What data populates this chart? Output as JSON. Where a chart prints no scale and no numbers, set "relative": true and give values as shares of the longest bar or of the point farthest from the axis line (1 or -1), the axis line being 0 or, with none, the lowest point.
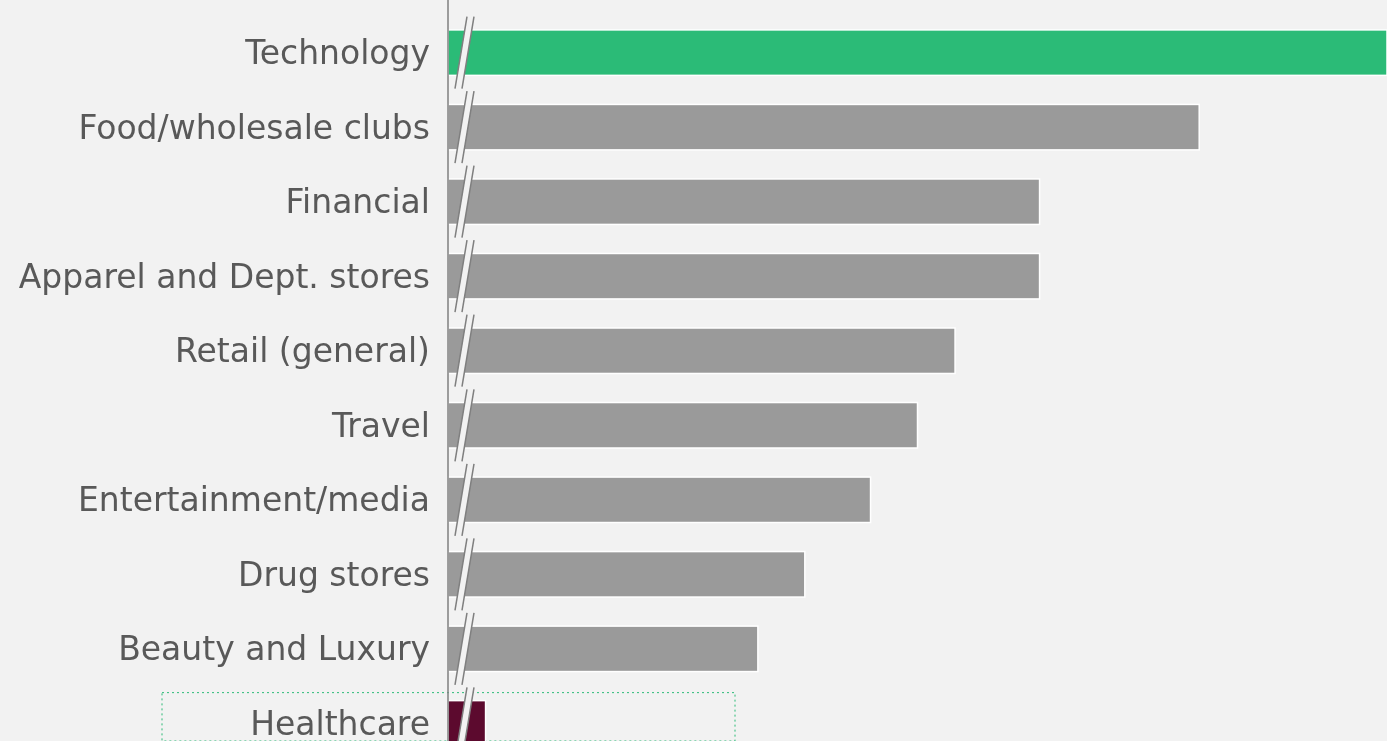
{
  "chart_data": {
    "type": "bar",
    "orientation": "horizontal",
    "relative": true,
    "categories": [
      "Technology",
      "Food/wholesale clubs",
      "Financial",
      "Apparel and Dept. stores",
      "Retail (general)",
      "Travel",
      "Entertainment/media",
      "Drug stores",
      "Beauty and Luxury",
      "Healthcare"
    ],
    "values": [
      1,
      0.8,
      0.63,
      0.63,
      0.54,
      0.5,
      0.45,
      0.38,
      0.33,
      0.04
    ],
    "colors": [
      "#2bbb77",
      "#9a9a9a",
      "#9a9a9a",
      "#9a9a9a",
      "#9a9a9a",
      "#9a9a9a",
      "#9a9a9a",
      "#9a9a9a",
      "#9a9a9a",
      "#5c0a2e"
    ],
    "xlabel": null
  }
}
